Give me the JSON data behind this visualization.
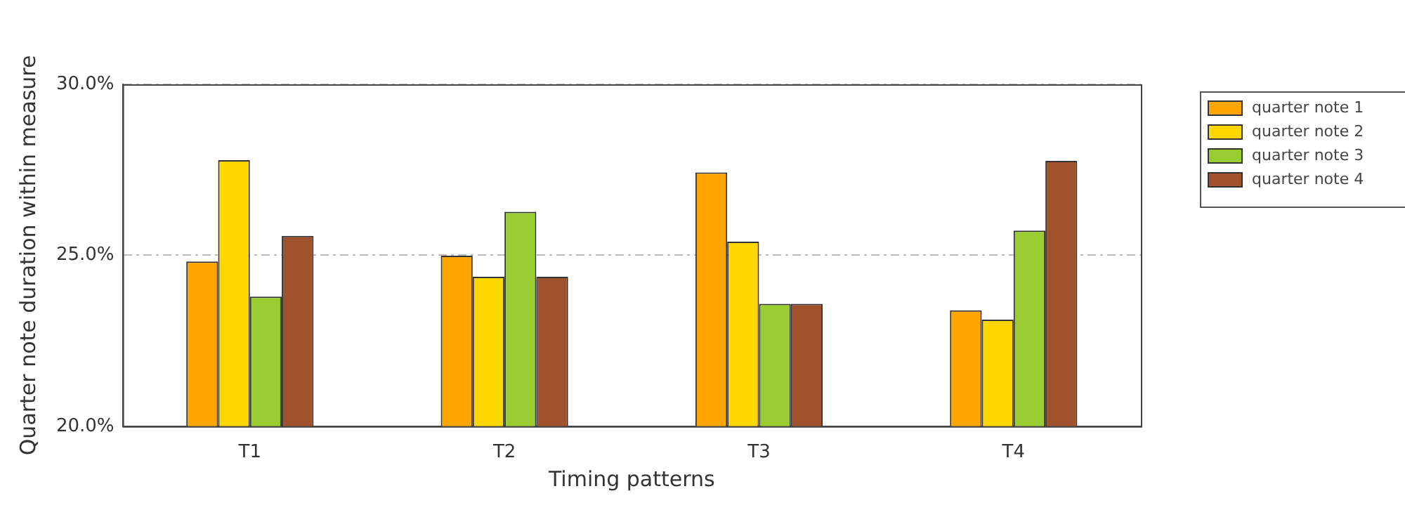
{
  "chart_data": {
    "type": "bar",
    "xlabel": "Timing patterns",
    "ylabel": "Quarter note duration within measure",
    "categories": [
      "T1",
      "T2",
      "T3",
      "T4"
    ],
    "series": [
      {
        "name": "quarter note 1",
        "color": "#ffa500",
        "values": [
          24.82,
          24.99,
          27.42,
          23.39
        ]
      },
      {
        "name": "quarter note 2",
        "color": "#ffd700",
        "values": [
          27.78,
          24.37,
          25.4,
          23.12
        ]
      },
      {
        "name": "quarter note 3",
        "color": "#9acd32",
        "values": [
          23.79,
          26.27,
          23.58,
          25.72
        ]
      },
      {
        "name": "quarter note 4",
        "color": "#a0522d",
        "values": [
          25.57,
          24.37,
          23.58,
          27.76
        ]
      }
    ],
    "ylim": [
      20,
      30
    ],
    "yticks": [
      {
        "value": 20,
        "label": "20.0%"
      },
      {
        "value": 25,
        "label": "25.0%"
      },
      {
        "value": 30,
        "label": "30.0%"
      }
    ],
    "grid": "y",
    "legend": "top right"
  }
}
